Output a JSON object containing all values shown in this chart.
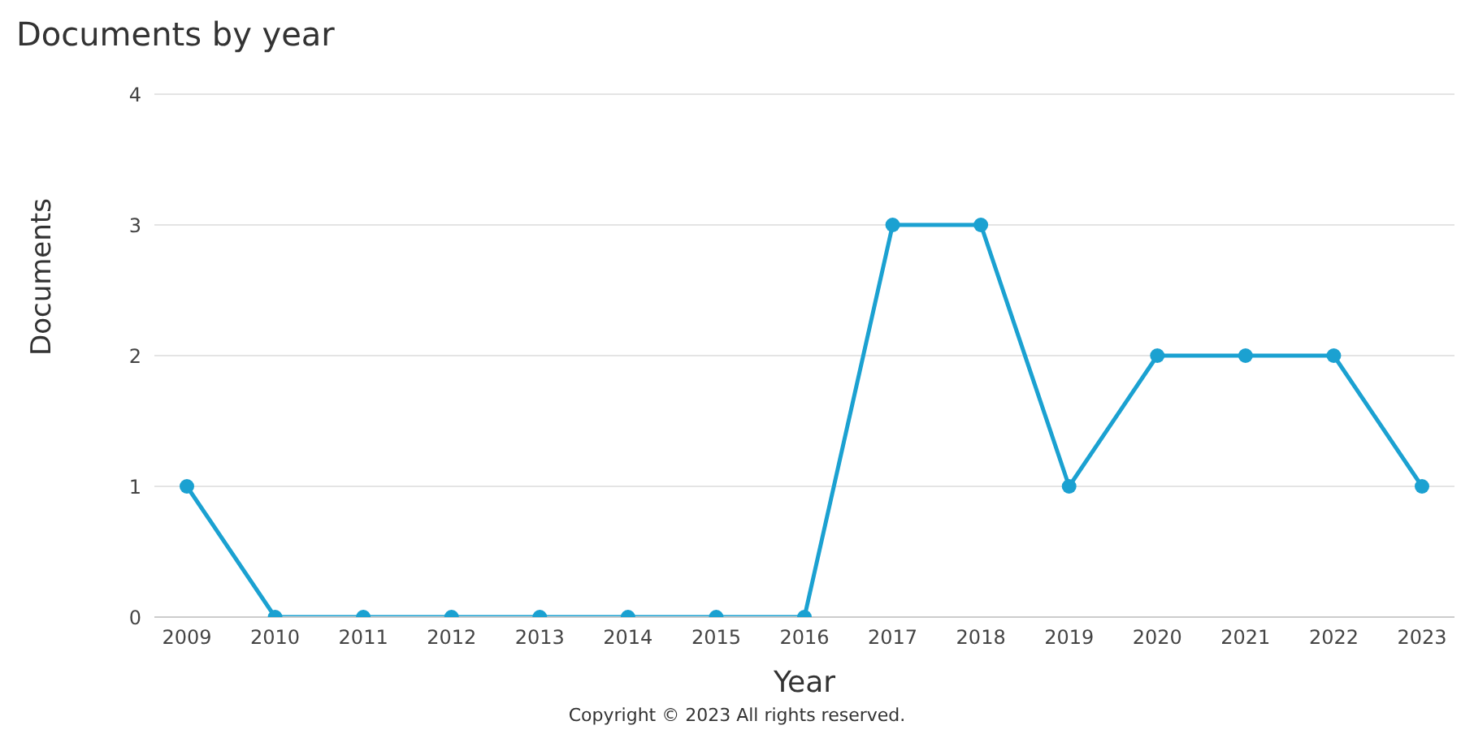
{
  "chart_data": {
    "type": "line",
    "title": "Documents by year",
    "xlabel": "Year",
    "ylabel": "Documents",
    "categories": [
      "2009",
      "2010",
      "2011",
      "2012",
      "2013",
      "2014",
      "2015",
      "2016",
      "2017",
      "2018",
      "2019",
      "2020",
      "2021",
      "2022",
      "2023"
    ],
    "series": [
      {
        "color": "#1ba1d1",
        "values": [
          1,
          0,
          0,
          0,
          0,
          0,
          0,
          0,
          3,
          3,
          1,
          2,
          2,
          2,
          1
        ]
      }
    ],
    "ylim": [
      0,
      4
    ],
    "yticks": [
      0,
      1,
      2,
      3,
      4
    ],
    "grid": "y",
    "marker": "circle",
    "line_style": "solid",
    "legend": false,
    "annotations": [
      "Copyright © 2023 All rights reserved."
    ]
  }
}
